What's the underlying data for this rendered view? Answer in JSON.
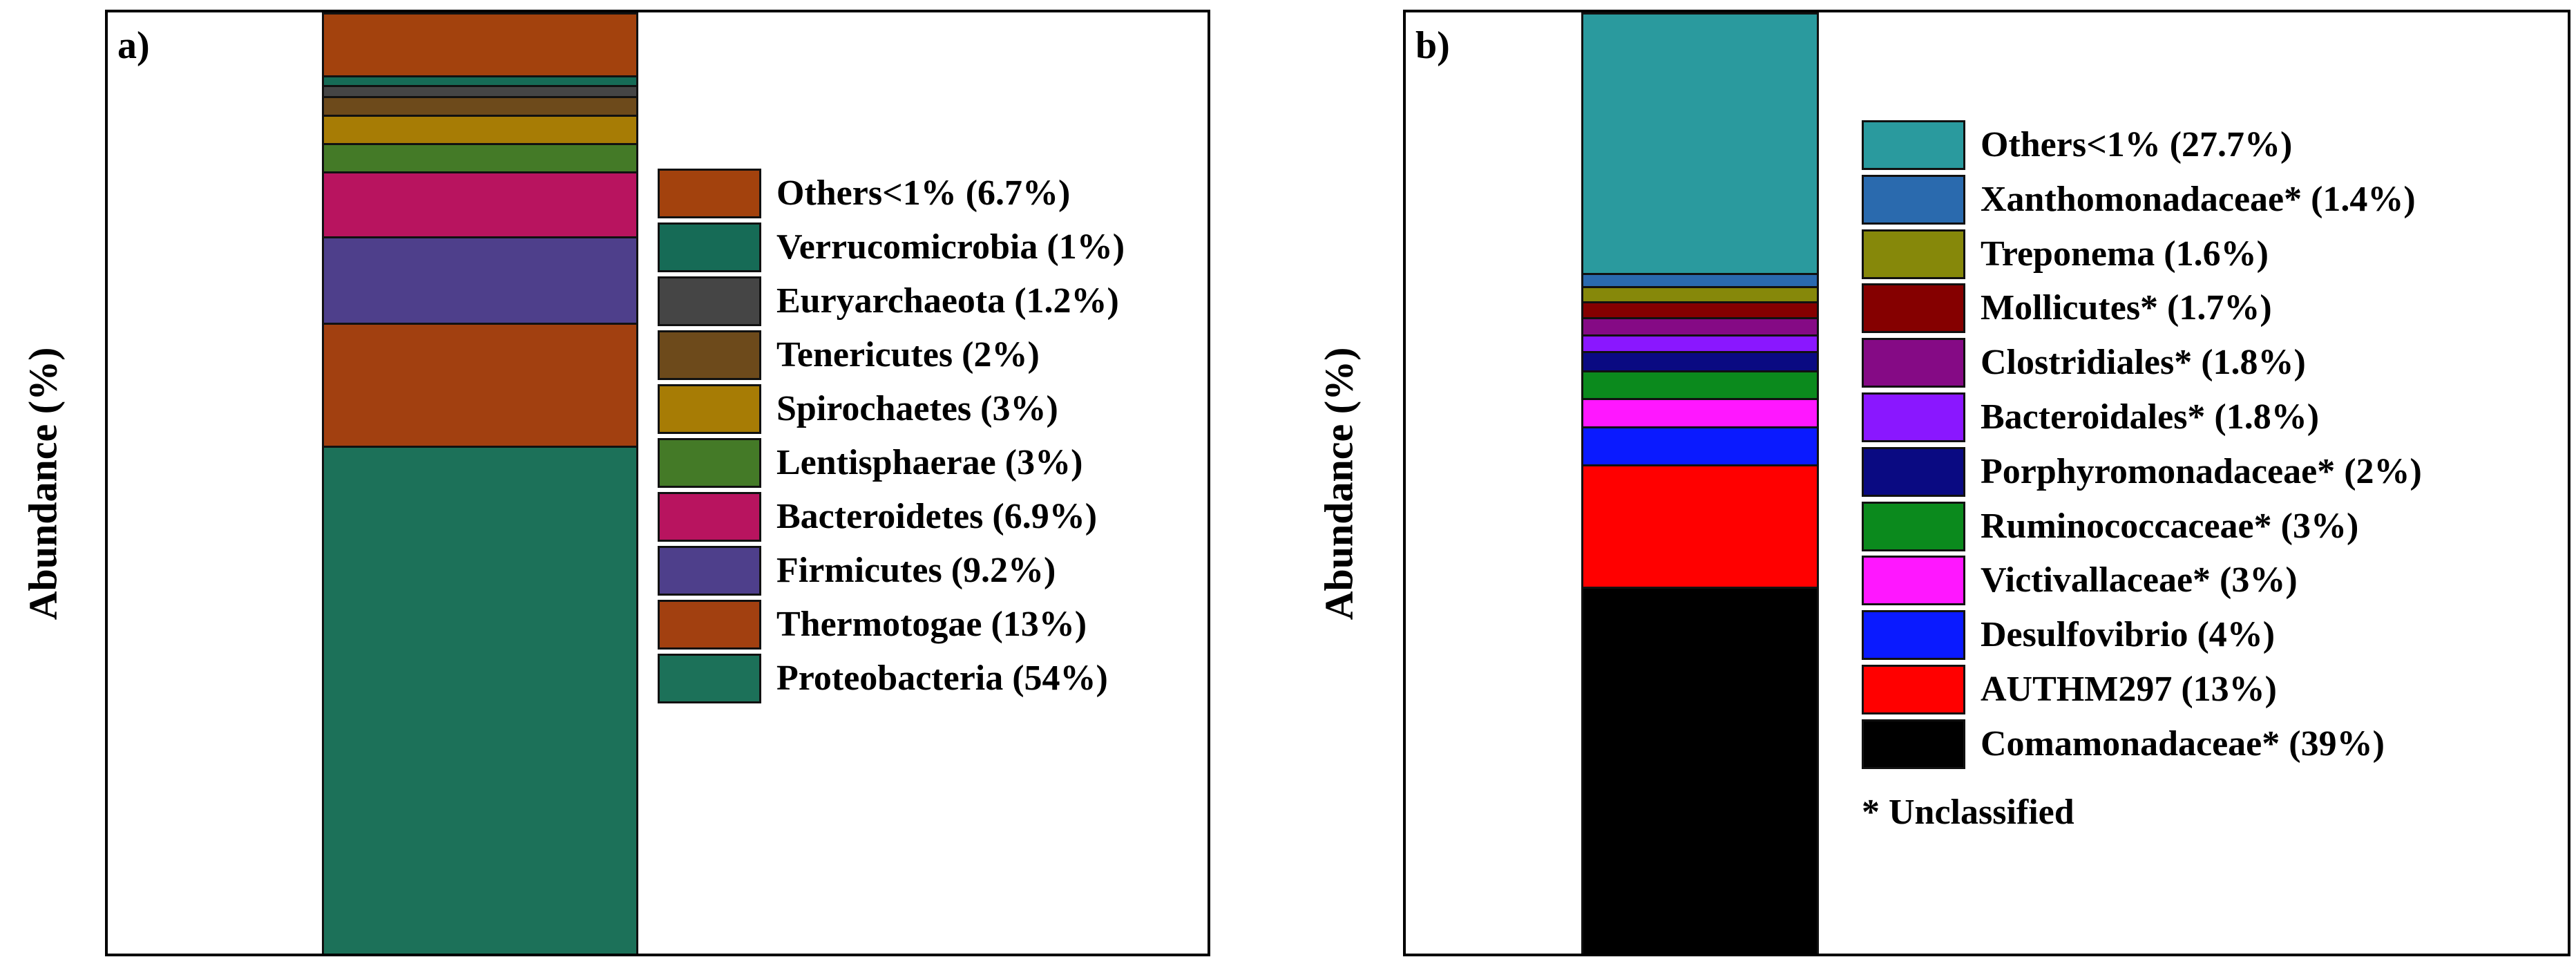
{
  "chart_data": [
    {
      "type": "bar",
      "stacked": true,
      "panel_label": "a)",
      "ylabel": "Abundance (%)",
      "legend_position": "right",
      "segments": [
        {
          "name": "Proteobacteria",
          "legend": "Proteobacteria (54%)",
          "value": 54,
          "color": "#1c7159"
        },
        {
          "name": "Thermotogae",
          "legend": "Thermotogae (13%)",
          "value": 13,
          "color": "#a24010"
        },
        {
          "name": "Firmicutes",
          "legend": "Firmicutes (9.2%)",
          "value": 9.2,
          "color": "#4e3f8b"
        },
        {
          "name": "Bacteroidetes",
          "legend": "Bacteroidetes (6.9%)",
          "value": 6.9,
          "color": "#b8145f"
        },
        {
          "name": "Lentisphaerae",
          "legend": "Lentisphaerae (3%)",
          "value": 3,
          "color": "#447a27"
        },
        {
          "name": "Spirochaetes",
          "legend": "Spirochaetes (3%)",
          "value": 3,
          "color": "#a77c05"
        },
        {
          "name": "Tenericutes",
          "legend": "Tenericutes (2%)",
          "value": 2,
          "color": "#6d4a1b"
        },
        {
          "name": "Euryarchaeota",
          "legend": "Euryarchaeota (1.2%)",
          "value": 1.2,
          "color": "#454545"
        },
        {
          "name": "Verrucomicrobia",
          "legend": "Verrucomicrobia (1%)",
          "value": 1,
          "color": "#166b56"
        },
        {
          "name": "Others<1%",
          "legend": "Others<1% (6.7%)",
          "value": 6.7,
          "color": "#a3420d"
        }
      ]
    },
    {
      "type": "bar",
      "stacked": true,
      "panel_label": "b)",
      "ylabel": "Abundance (%)",
      "legend_position": "right",
      "note": "* Unclassified",
      "segments": [
        {
          "name": "Comamonadaceae*",
          "legend": "Comamonadaceae* (39%)",
          "value": 39,
          "color": "#000000"
        },
        {
          "name": "AUTHM297",
          "legend": "AUTHM297 (13%)",
          "value": 13,
          "color": "#ff0000"
        },
        {
          "name": "Desulfovibrio",
          "legend": "Desulfovibrio (4%)",
          "value": 4,
          "color": "#0a1aff"
        },
        {
          "name": "Victivallaceae*",
          "legend": "Victivallaceae* (3%)",
          "value": 3,
          "color": "#ff17ff"
        },
        {
          "name": "Ruminococcaceae*",
          "legend": "Ruminococcaceae* (3%)",
          "value": 3,
          "color": "#0b8a1d"
        },
        {
          "name": "Porphyromonadaceae*",
          "legend": "Porphyromonadaceae* (2%)",
          "value": 2,
          "color": "#0a0a82"
        },
        {
          "name": "Bacteroidales*",
          "legend": "Bacteroidales* (1.8%)",
          "value": 1.8,
          "color": "#8a17ff"
        },
        {
          "name": "Clostridiales*",
          "legend": "Clostridiales* (1.8%)",
          "value": 1.8,
          "color": "#850a85"
        },
        {
          "name": "Mollicutes*",
          "legend": "Mollicutes* (1.7%)",
          "value": 1.7,
          "color": "#850000"
        },
        {
          "name": "Treponema",
          "legend": "Treponema (1.6%)",
          "value": 1.6,
          "color": "#86880a"
        },
        {
          "name": "Xanthomonadaceae*",
          "legend": "Xanthomonadaceae* (1.4%)",
          "value": 1.4,
          "color": "#2a6aae"
        },
        {
          "name": "Others<1%",
          "legend": "Others<1% (27.7%)",
          "value": 27.7,
          "color": "#2a9a9e"
        }
      ]
    }
  ]
}
